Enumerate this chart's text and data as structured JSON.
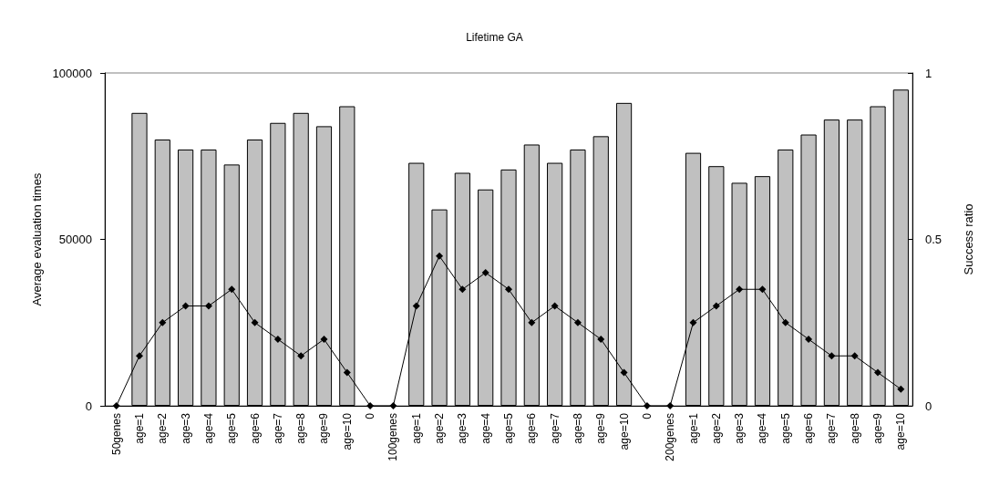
{
  "chart_data": {
    "type": "bar",
    "title": "Lifetime GA",
    "ylabel": "Average evaluation times",
    "y2label": "Success ratio",
    "categories": [
      "50genes",
      "age=1",
      "age=2",
      "age=3",
      "age=4",
      "age=5",
      "age=6",
      "age=7",
      "age=8",
      "age=9",
      "age=10",
      "0",
      "100genes",
      "age=1",
      "age=2",
      "age=3",
      "age=4",
      "age=5",
      "age=6",
      "age=7",
      "age=8",
      "age=9",
      "age=10",
      "0",
      "200genes",
      "age=1",
      "age=2",
      "age=3",
      "age=4",
      "age=5",
      "age=6",
      "age=7",
      "age=8",
      "age=9",
      "age=10"
    ],
    "series": [
      {
        "color": "#c0c0c0",
        "values": [
          null,
          88000,
          80000,
          77000,
          77000,
          72500,
          80000,
          85000,
          88000,
          84000,
          90000,
          null,
          null,
          73000,
          59000,
          70000,
          65000,
          71000,
          78500,
          73000,
          77000,
          81000,
          91000,
          null,
          null,
          76000,
          72000,
          67000,
          69000,
          77000,
          81500,
          86000,
          86000,
          90000,
          95000
        ]
      },
      {
        "type": "line",
        "axis": "y2",
        "color": "#000000",
        "marker": "diamond",
        "values": [
          0,
          0.15,
          0.25,
          0.3,
          0.3,
          0.35,
          0.25,
          0.2,
          0.15,
          0.2,
          0.1,
          0,
          0,
          0.3,
          0.45,
          0.35,
          0.4,
          0.35,
          0.25,
          0.3,
          0.25,
          0.2,
          0.1,
          0,
          0,
          0.25,
          0.3,
          0.35,
          0.35,
          0.25,
          0.2,
          0.15,
          0.15,
          0.1,
          0.05
        ]
      }
    ],
    "ylim": [
      0,
      100000
    ],
    "yticks": [
      0,
      50000,
      100000
    ],
    "y2lim": [
      0,
      1
    ],
    "y2ticks": [
      0,
      0.5,
      1
    ],
    "grid": false
  }
}
